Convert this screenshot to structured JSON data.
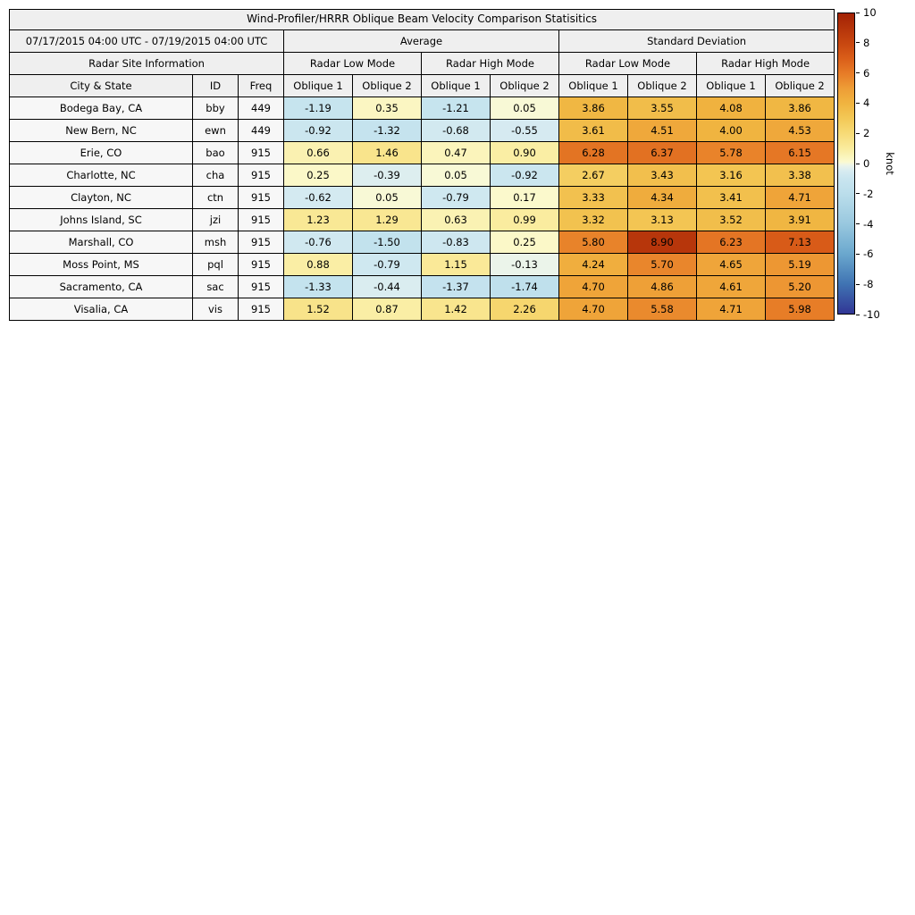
{
  "chart_data": {
    "type": "table",
    "title": "Wind-Profiler/HRRR Oblique Beam Velocity Comparison Statisitics",
    "date_range": "07/17/2015 04:00 UTC - 07/19/2015 04:00 UTC",
    "groups": [
      "Average",
      "Standard Deviation"
    ],
    "site_info_header": "Radar Site Information",
    "mode_headers": [
      "Radar Low Mode",
      "Radar High Mode",
      "Radar Low Mode",
      "Radar High Mode"
    ],
    "column_headers": [
      "City & State",
      "ID",
      "Freq",
      "Oblique 1",
      "Oblique 2",
      "Oblique 1",
      "Oblique 2",
      "Oblique 1",
      "Oblique 2",
      "Oblique 1",
      "Oblique 2"
    ],
    "rows": [
      {
        "city": "Bodega Bay, CA",
        "id": "bby",
        "freq": "449",
        "values": [
          "-1.19",
          "0.35",
          "-1.21",
          "0.05",
          "3.86",
          "3.55",
          "4.08",
          "3.86"
        ]
      },
      {
        "city": "New Bern, NC",
        "id": "ewn",
        "freq": "449",
        "values": [
          "-0.92",
          "-1.32",
          "-0.68",
          "-0.55",
          "3.61",
          "4.51",
          "4.00",
          "4.53"
        ]
      },
      {
        "city": "Erie, CO",
        "id": "bao",
        "freq": "915",
        "values": [
          "0.66",
          "1.46",
          "0.47",
          "0.90",
          "6.28",
          "6.37",
          "5.78",
          "6.15"
        ]
      },
      {
        "city": "Charlotte, NC",
        "id": "cha",
        "freq": "915",
        "values": [
          "0.25",
          "-0.39",
          "0.05",
          "-0.92",
          "2.67",
          "3.43",
          "3.16",
          "3.38"
        ]
      },
      {
        "city": "Clayton, NC",
        "id": "ctn",
        "freq": "915",
        "values": [
          "-0.62",
          "0.05",
          "-0.79",
          "0.17",
          "3.33",
          "4.34",
          "3.41",
          "4.71"
        ]
      },
      {
        "city": "Johns Island, SC",
        "id": "jzi",
        "freq": "915",
        "values": [
          "1.23",
          "1.29",
          "0.63",
          "0.99",
          "3.32",
          "3.13",
          "3.52",
          "3.91"
        ]
      },
      {
        "city": "Marshall, CO",
        "id": "msh",
        "freq": "915",
        "values": [
          "-0.76",
          "-1.50",
          "-0.83",
          "0.25",
          "5.80",
          "8.90",
          "6.23",
          "7.13"
        ]
      },
      {
        "city": "Moss Point, MS",
        "id": "pql",
        "freq": "915",
        "values": [
          "0.88",
          "-0.79",
          "1.15",
          "-0.13",
          "4.24",
          "5.70",
          "4.65",
          "5.19"
        ]
      },
      {
        "city": "Sacramento, CA",
        "id": "sac",
        "freq": "915",
        "values": [
          "-1.33",
          "-0.44",
          "-1.37",
          "-1.74",
          "4.70",
          "4.86",
          "4.61",
          "5.20"
        ]
      },
      {
        "city": "Visalia, CA",
        "id": "vis",
        "freq": "915",
        "values": [
          "1.52",
          "0.87",
          "1.42",
          "2.26",
          "4.70",
          "5.58",
          "4.71",
          "5.98"
        ]
      }
    ],
    "colorbar": {
      "unit": "knot",
      "min": -10,
      "max": 10,
      "ticks": [
        "10",
        "8",
        "6",
        "4",
        "2",
        "0",
        "-2",
        "-4",
        "-6",
        "-8",
        "-10"
      ]
    },
    "colormap": [
      [
        -10,
        "#313695"
      ],
      [
        -8,
        "#4074B3"
      ],
      [
        -6,
        "#6BA8CE"
      ],
      [
        -4,
        "#99C8DF"
      ],
      [
        -2,
        "#BBDEEB"
      ],
      [
        -1,
        "#C9E5EF"
      ],
      [
        -0.5,
        "#D7EBF1"
      ],
      [
        -0.1,
        "#EDF5E9"
      ],
      [
        0.1,
        "#FBFAD0"
      ],
      [
        1,
        "#FAEC9E"
      ],
      [
        2,
        "#F7DB77"
      ],
      [
        3,
        "#F3C856"
      ],
      [
        4,
        "#F0B440"
      ],
      [
        5,
        "#EE9D36"
      ],
      [
        6,
        "#E77C27"
      ],
      [
        7,
        "#DA5E19"
      ],
      [
        8,
        "#C84710"
      ],
      [
        9,
        "#B5340A"
      ],
      [
        10,
        "#A22205"
      ]
    ],
    "colors": {
      "header_bg": "#EFEFEF",
      "info_cell_bg": "#F7F7F7",
      "border": "#000000"
    }
  }
}
